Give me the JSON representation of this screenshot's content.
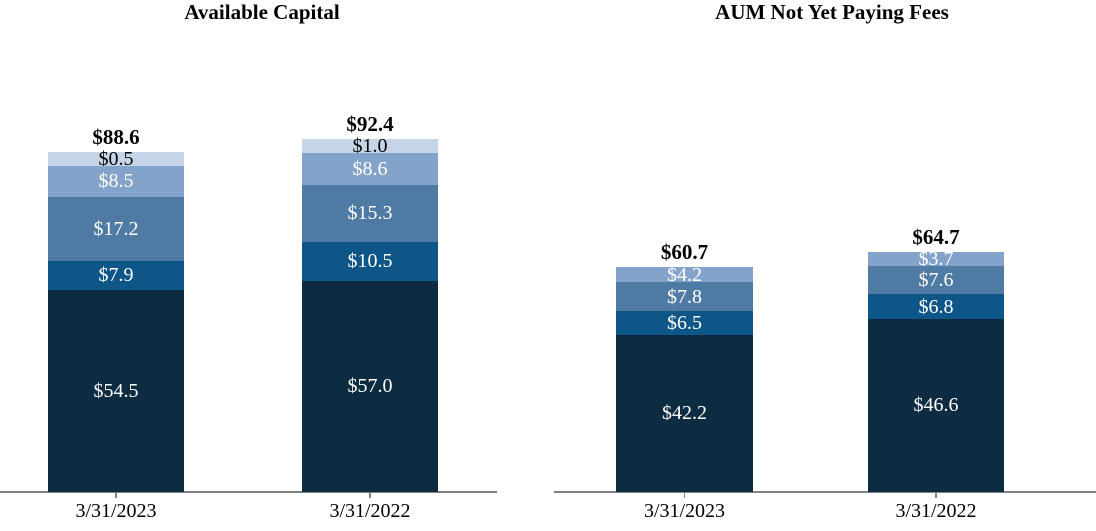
{
  "figure": {
    "background": "#ffffff",
    "axis_color": "#808080",
    "text_color": "#000000"
  },
  "chart_data": [
    {
      "type": "stacked-bar",
      "title": "Available Capital",
      "categories": [
        "3/31/2023",
        "3/31/2022"
      ],
      "totals": {
        "values": [
          88.6,
          92.4
        ],
        "labels": [
          "$88.6",
          "$92.4"
        ]
      },
      "series_order": "bottom-to-top",
      "grid": false,
      "legend": null,
      "xlabel": "",
      "ylabel": "",
      "series": [
        {
          "name": "segment-1-navy",
          "color": "#0d2b41",
          "label_color": "#ffffff",
          "values": [
            54.5,
            57.0
          ],
          "labels": [
            "$54.5",
            "$57.0"
          ]
        },
        {
          "name": "segment-2-dark-blue",
          "color": "#0e5687",
          "label_color": "#ffffff",
          "values": [
            7.9,
            10.5
          ],
          "labels": [
            "$7.9",
            "$10.5"
          ]
        },
        {
          "name": "segment-3-slate-blue",
          "color": "#4e7aa4",
          "label_color": "#ffffff",
          "values": [
            17.2,
            15.3
          ],
          "labels": [
            "$17.2",
            "$15.3"
          ]
        },
        {
          "name": "segment-4-light-blue",
          "color": "#84a3ca",
          "label_color": "#ffffff",
          "values": [
            8.5,
            8.6
          ],
          "labels": [
            "$8.5",
            "$8.6"
          ]
        },
        {
          "name": "segment-5-pale-blue",
          "color": "#c6d4e8",
          "label_color": "#000000",
          "values": [
            0.5,
            1.0
          ],
          "labels": [
            "$0.5",
            "$1.0"
          ]
        }
      ]
    },
    {
      "type": "stacked-bar",
      "title": "AUM Not Yet Paying Fees",
      "categories": [
        "3/31/2023",
        "3/31/2022"
      ],
      "totals": {
        "values": [
          60.7,
          64.7
        ],
        "labels": [
          "$60.7",
          "$64.7"
        ]
      },
      "series_order": "bottom-to-top",
      "grid": false,
      "legend": null,
      "xlabel": "",
      "ylabel": "",
      "series": [
        {
          "name": "segment-1-navy",
          "color": "#0d2b41",
          "label_color": "#ffffff",
          "values": [
            42.2,
            46.6
          ],
          "labels": [
            "$42.2",
            "$46.6"
          ]
        },
        {
          "name": "segment-2-dark-blue",
          "color": "#0e5687",
          "label_color": "#ffffff",
          "values": [
            6.5,
            6.8
          ],
          "labels": [
            "$6.5",
            "$6.8"
          ]
        },
        {
          "name": "segment-3-slate-blue",
          "color": "#4e7aa4",
          "label_color": "#ffffff",
          "values": [
            7.8,
            7.6
          ],
          "labels": [
            "$7.8",
            "$7.6"
          ]
        },
        {
          "name": "segment-4-light-blue",
          "color": "#84a3ca",
          "label_color": "#ffffff",
          "values": [
            4.2,
            3.7
          ],
          "labels": [
            "$4.2",
            "$3.7"
          ]
        }
      ]
    }
  ]
}
